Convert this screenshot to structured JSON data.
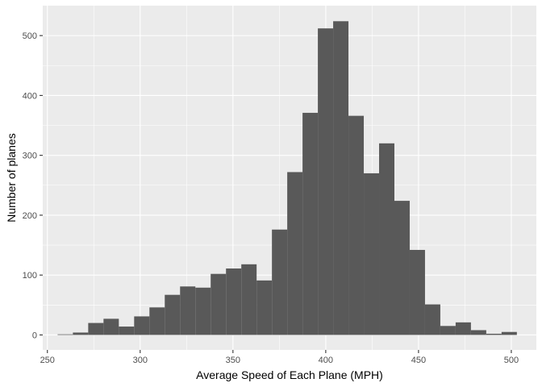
{
  "chart_data": {
    "type": "bar",
    "xlabel": "Average Speed of Each Plane (MPH)",
    "ylabel": "Number of planes",
    "xlim": [
      247.5,
      513.5
    ],
    "ylim": [
      -25,
      550
    ],
    "x_ticks": [
      250,
      300,
      350,
      400,
      450,
      500
    ],
    "y_ticks": [
      0,
      100,
      200,
      300,
      400,
      500
    ],
    "grid": true,
    "bin_width": 8.25,
    "bins": [
      {
        "x0": 255.5,
        "x1": 263.75,
        "count": 1
      },
      {
        "x0": 263.75,
        "x1": 272.0,
        "count": 4
      },
      {
        "x0": 272.0,
        "x1": 280.25,
        "count": 20
      },
      {
        "x0": 280.25,
        "x1": 288.5,
        "count": 27
      },
      {
        "x0": 288.5,
        "x1": 296.75,
        "count": 14
      },
      {
        "x0": 296.75,
        "x1": 305.0,
        "count": 31
      },
      {
        "x0": 305.0,
        "x1": 313.25,
        "count": 46
      },
      {
        "x0": 313.25,
        "x1": 321.5,
        "count": 67
      },
      {
        "x0": 321.5,
        "x1": 329.75,
        "count": 81
      },
      {
        "x0": 329.75,
        "x1": 338.0,
        "count": 79
      },
      {
        "x0": 338.0,
        "x1": 346.25,
        "count": 102
      },
      {
        "x0": 346.25,
        "x1": 354.5,
        "count": 111
      },
      {
        "x0": 354.5,
        "x1": 362.75,
        "count": 118
      },
      {
        "x0": 362.75,
        "x1": 371.0,
        "count": 91
      },
      {
        "x0": 371.0,
        "x1": 379.25,
        "count": 176
      },
      {
        "x0": 379.25,
        "x1": 387.5,
        "count": 272
      },
      {
        "x0": 387.5,
        "x1": 395.75,
        "count": 371
      },
      {
        "x0": 395.75,
        "x1": 404.0,
        "count": 512
      },
      {
        "x0": 404.0,
        "x1": 412.25,
        "count": 524
      },
      {
        "x0": 412.25,
        "x1": 420.5,
        "count": 366
      },
      {
        "x0": 420.5,
        "x1": 428.75,
        "count": 270
      },
      {
        "x0": 428.75,
        "x1": 437.0,
        "count": 320
      },
      {
        "x0": 437.0,
        "x1": 445.25,
        "count": 224
      },
      {
        "x0": 445.25,
        "x1": 453.5,
        "count": 142
      },
      {
        "x0": 453.5,
        "x1": 461.75,
        "count": 51
      },
      {
        "x0": 461.75,
        "x1": 470.0,
        "count": 15
      },
      {
        "x0": 470.0,
        "x1": 478.25,
        "count": 21
      },
      {
        "x0": 478.25,
        "x1": 486.5,
        "count": 8
      },
      {
        "x0": 486.5,
        "x1": 494.75,
        "count": 2
      },
      {
        "x0": 494.75,
        "x1": 503.0,
        "count": 5
      }
    ],
    "colors": {
      "bar_fill": "#595959",
      "panel_background": "#ebebeb",
      "grid_major": "#ffffff",
      "tick_text": "#4d4d4d"
    }
  }
}
